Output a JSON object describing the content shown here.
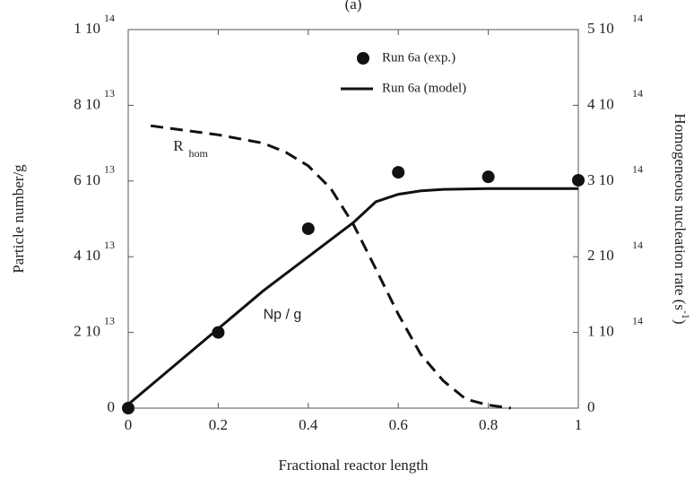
{
  "chart_data": {
    "type": "scatter+line",
    "title": "(a)",
    "xlabel": "Fractional reactor length",
    "ylabel": "Particle number/g",
    "y2label": {
      "text": "Homogeneous nucleation rate (s",
      "superscript": "-1",
      "close": ")"
    },
    "xlim": [
      0,
      1
    ],
    "xticks": [
      0,
      0.2,
      0.4,
      0.6,
      0.8,
      1
    ],
    "ylim": [
      0,
      100000000000000
    ],
    "yticks": [
      0,
      {
        "value": 20000000000000,
        "label": "2 10",
        "exponent": "13"
      },
      {
        "value": 40000000000000,
        "label": "4 10",
        "exponent": "13"
      },
      {
        "value": 60000000000000,
        "label": "6 10",
        "exponent": "13"
      },
      {
        "value": 80000000000000,
        "label": "8 10",
        "exponent": "13"
      },
      {
        "value": 100000000000000,
        "label": "1 10",
        "exponent": "14"
      }
    ],
    "y2lim": [
      0,
      500000000000000
    ],
    "y2ticks": [
      0,
      {
        "value": 100000000000000,
        "label": "1 10",
        "exponent": "14"
      },
      {
        "value": 200000000000000,
        "label": "2 10",
        "exponent": "14"
      },
      {
        "value": 300000000000000,
        "label": "3 10",
        "exponent": "14"
      },
      {
        "value": 400000000000000,
        "label": "4 10",
        "exponent": "14"
      },
      {
        "value": 500000000000000,
        "label": "5 10",
        "exponent": "14"
      }
    ],
    "series": [
      {
        "name": "Run 6a (exp.)",
        "type": "scatter",
        "color": "#111111",
        "x": [
          0,
          0.2,
          0.4,
          0.6,
          0.8,
          1
        ],
        "values": [
          0,
          20000000000000,
          47400000000000,
          62300000000000,
          61100000000000,
          60200000000000
        ]
      },
      {
        "name": "Run 6a (model)",
        "type": "line",
        "color": "#111111",
        "x": [
          0,
          0.1,
          0.2,
          0.3,
          0.4,
          0.5,
          0.55,
          0.6,
          0.65,
          0.7,
          0.8,
          0.9,
          1
        ],
        "values": [
          1000000000000,
          11000000000000,
          21000000000000,
          31000000000000,
          40000000000000,
          49000000000000,
          54500000000000,
          56500000000000,
          57400000000000,
          57800000000000,
          58000000000000,
          58000000000000,
          58000000000000
        ]
      },
      {
        "type": "line",
        "axis": "y2",
        "dashed": true,
        "color": "#111111",
        "x": [
          0.05,
          0.2,
          0.3,
          0.35,
          0.4,
          0.45,
          0.5,
          0.55,
          0.6,
          0.65,
          0.7,
          0.75,
          0.8,
          0.85
        ],
        "values": [
          373000000000000,
          361000000000000,
          350000000000000,
          338000000000000,
          320000000000000,
          290000000000000,
          243000000000000,
          184000000000000,
          124000000000000,
          71000000000000,
          36000000000000,
          12000000000000,
          4000000000000,
          0
        ]
      }
    ],
    "annotations": [
      {
        "text": "R",
        "subscript": "hom",
        "x": 0.1,
        "y": 69000000000000
      },
      {
        "text": "Np / g",
        "x": 0.3,
        "y": 24500000000000
      }
    ]
  }
}
